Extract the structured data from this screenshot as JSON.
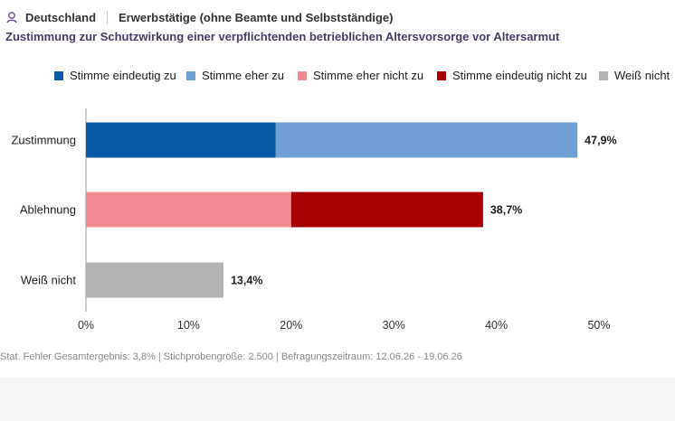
{
  "header": {
    "region": "Deutschland",
    "population": "Erwerbstätige (ohne Beamte und Selbstständige)",
    "subtitle": "Zustimmung zur Schutzwirkung einer verpflichtenden betrieblichen Altersvorsorge vor Altersarmut"
  },
  "legend": [
    {
      "label": "Stimme eindeutig zu",
      "color": "#0b5aa6"
    },
    {
      "label": "Stimme eher zu",
      "color": "#6f9fd6"
    },
    {
      "label": "Stimme eher nicht zu",
      "color": "#f08b93"
    },
    {
      "label": "Stimme eindeutig nicht zu",
      "color": "#a80000"
    },
    {
      "label": "Weiß nicht",
      "color": "#b3b3b3"
    }
  ],
  "chart_data": {
    "type": "bar",
    "orientation": "horizontal",
    "stacked": true,
    "categories": [
      "Zustimmung",
      "Ablehnung",
      "Weiß nicht"
    ],
    "series": [
      {
        "name": "Stimme eindeutig zu",
        "values": [
          18.5,
          0,
          0
        ]
      },
      {
        "name": "Stimme eher zu",
        "values": [
          29.4,
          0,
          0
        ]
      },
      {
        "name": "Stimme eher nicht zu",
        "values": [
          0,
          20.0,
          0
        ]
      },
      {
        "name": "Stimme eindeutig nicht zu",
        "values": [
          0,
          18.7,
          0
        ]
      },
      {
        "name": "Weiß nicht",
        "values": [
          0,
          0,
          13.4
        ]
      }
    ],
    "totals": [
      "47,9%",
      "38,7%",
      "13,4%"
    ],
    "xlim": [
      0,
      50
    ],
    "xticks": [
      "0%",
      "10%",
      "20%",
      "30%",
      "40%",
      "50%"
    ],
    "grid": false,
    "legend_position": "top"
  },
  "footnote": "Stat. Fehler Gesamtergebnis: 3,8% | Stichprobengröße: 2.500 | Befragungszeitraum: 12.06.26 - 19.06.26"
}
